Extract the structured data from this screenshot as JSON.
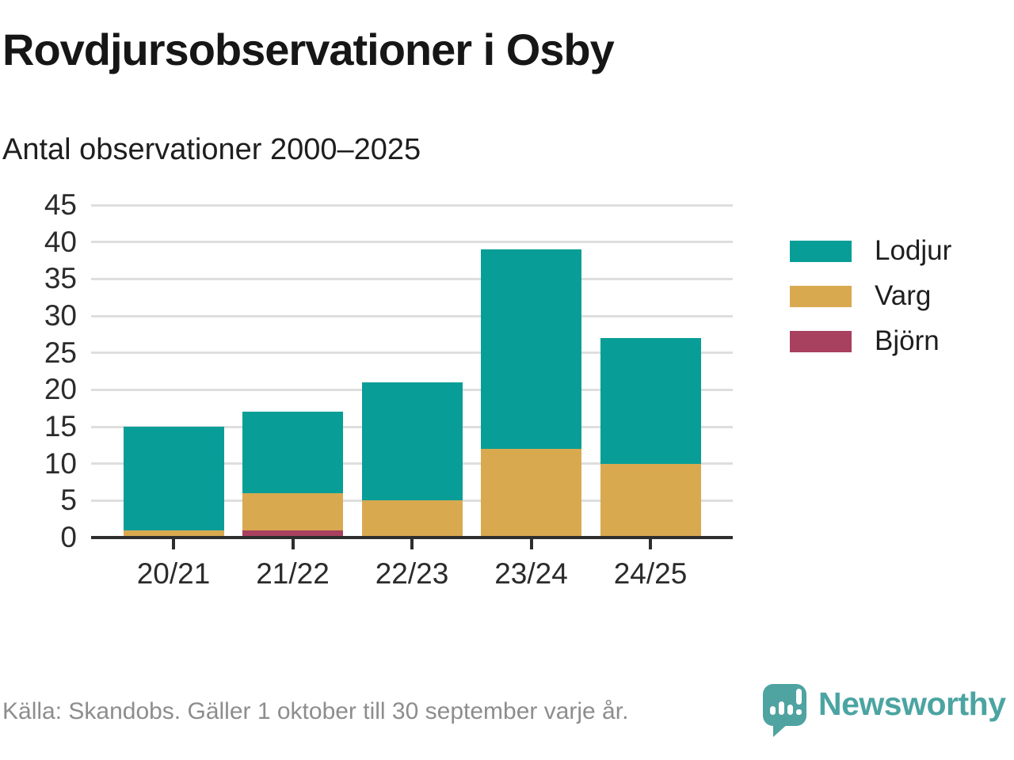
{
  "title": "Rovdjursobservationer i Osby",
  "subtitle": "Antal observationer 2000–2025",
  "footer": {
    "source": "Källa: Skandobs. Gäller 1 oktober till 30 september varje år.",
    "brand": "Newsworthy"
  },
  "colors": {
    "lodjur": "#089e97",
    "varg": "#d9a950",
    "bjorn": "#a84060",
    "grid": "#dedede",
    "axis": "#2e2e2e",
    "logo_teal": "#4fa3a0"
  },
  "legend": [
    {
      "label": "Lodjur",
      "color": "#089e97"
    },
    {
      "label": "Varg",
      "color": "#d9a950"
    },
    {
      "label": "Björn",
      "color": "#a84060"
    }
  ],
  "chart_data": {
    "type": "bar",
    "stacked": true,
    "title": "Rovdjursobservationer i Osby",
    "subtitle": "Antal observationer 2000–2025",
    "categories": [
      "20/21",
      "21/22",
      "22/23",
      "23/24",
      "24/25"
    ],
    "series": [
      {
        "name": "Lodjur",
        "color": "#089e97",
        "values": [
          14,
          11,
          16,
          27,
          17
        ]
      },
      {
        "name": "Varg",
        "color": "#d9a950",
        "values": [
          1,
          5,
          5,
          12,
          10
        ]
      },
      {
        "name": "Björn",
        "color": "#a84060",
        "values": [
          0,
          1,
          0,
          0,
          0
        ]
      }
    ],
    "stack_order_bottom_to_top": [
      "Björn",
      "Varg",
      "Lodjur"
    ],
    "totals": [
      15,
      17,
      21,
      39,
      27
    ],
    "ylim": [
      0,
      45
    ],
    "yticks": [
      0,
      5,
      10,
      15,
      20,
      25,
      30,
      35,
      40,
      45
    ],
    "xlabel": "",
    "ylabel": "",
    "grid": true,
    "legend_position": "right"
  }
}
